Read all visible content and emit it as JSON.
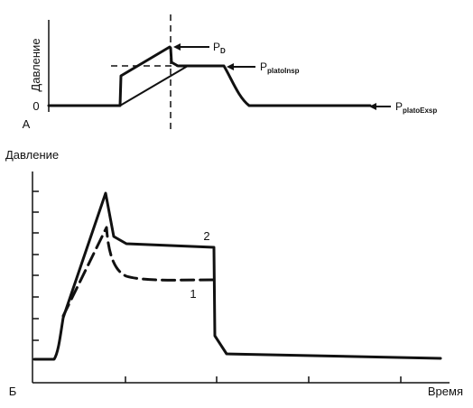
{
  "panel_a": {
    "letter": "A",
    "ylabel": "Давление",
    "zero_label": "0",
    "label_pd_main": "P",
    "label_pd_sub": "D",
    "label_insp_main": "P",
    "label_insp_sub": "platoInsp",
    "label_exsp_main": "P",
    "label_exsp_sub": "platoExsp"
  },
  "panel_b": {
    "letter": "Б",
    "ylabel": "Давление",
    "xlabel": "Время",
    "curve_1_label": "1",
    "curve_2_label": "2"
  },
  "colors": {
    "ink": "#111111",
    "background": "#ffffff"
  }
}
